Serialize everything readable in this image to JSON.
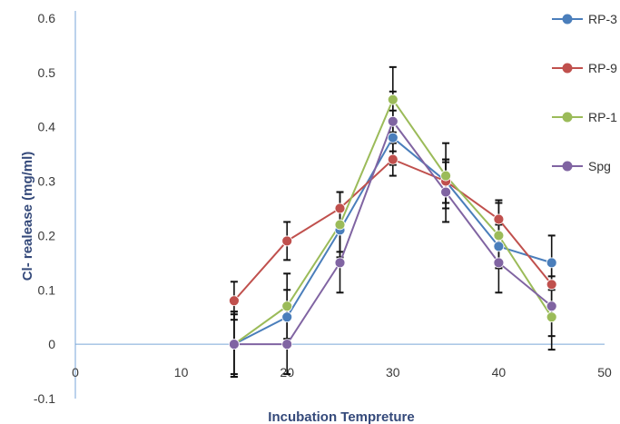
{
  "chart_data": {
    "type": "line",
    "xlabel": "Incubation Tempreture",
    "ylabel": "Cl- realease (mg/ml)",
    "xlim": [
      0,
      50
    ],
    "ylim": [
      -0.1,
      0.6
    ],
    "xticks": [
      0,
      10,
      20,
      30,
      40,
      50
    ],
    "yticks": [
      -0.1,
      0,
      0.1,
      0.2,
      0.3,
      0.4,
      0.5,
      0.6
    ],
    "xtick_labels": [
      "0",
      "10",
      "20",
      "30",
      "40",
      "50"
    ],
    "ytick_labels": [
      "-0.1",
      "0",
      "0.1",
      "0.2",
      "0.3",
      "0.4",
      "0.5",
      "0.6"
    ],
    "grid": false,
    "legend_position": "right",
    "x": [
      15,
      20,
      25,
      30,
      35,
      40,
      45
    ],
    "series": [
      {
        "name": "RP-3",
        "color": "#4a7ebb",
        "values": [
          0.0,
          0.05,
          0.21,
          0.38,
          0.3,
          0.18,
          0.15
        ],
        "errors": [
          0.06,
          0.05,
          0.04,
          0.05,
          0.04,
          0.04,
          0.05
        ]
      },
      {
        "name": "RP-9",
        "color": "#c0504d",
        "values": [
          0.08,
          0.19,
          0.25,
          0.34,
          0.3,
          0.23,
          0.11
        ],
        "errors": [
          0.035,
          0.035,
          0.03,
          0.03,
          0.04,
          0.035,
          0.04
        ]
      },
      {
        "name": "RP-1",
        "color": "#9bbb59",
        "values": [
          0.0,
          0.07,
          0.22,
          0.45,
          0.31,
          0.2,
          0.05
        ],
        "errors": [
          0.06,
          0.06,
          0.06,
          0.06,
          0.06,
          0.06,
          0.06
        ]
      },
      {
        "name": "Spg",
        "color": "#8064a2",
        "values": [
          0.0,
          0.0,
          0.15,
          0.41,
          0.28,
          0.15,
          0.07
        ],
        "errors": [
          0.055,
          0.055,
          0.055,
          0.055,
          0.055,
          0.055,
          0.055
        ]
      }
    ]
  }
}
